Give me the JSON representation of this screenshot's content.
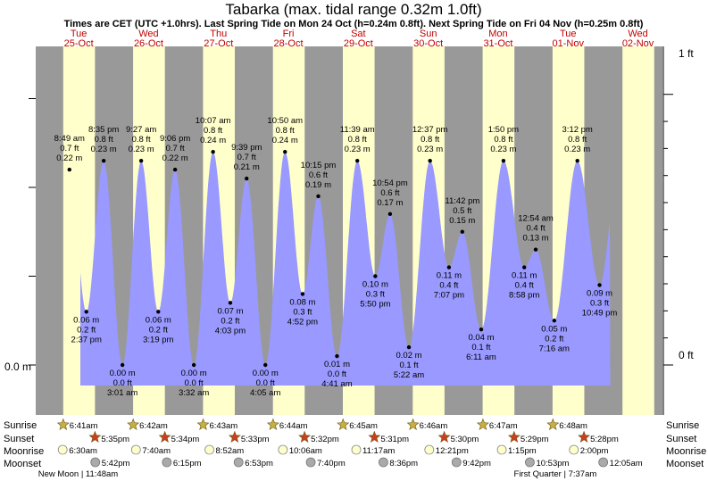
{
  "title": "Tabarka (max. tidal range 0.32m 1.0ft)",
  "subtitle": "Times are CET (UTC +1.0hrs). Last Spring Tide on Mon 24 Oct (h=0.24m 0.8ft). Next Spring Tide on Fri 04 Nov (h=0.25m 0.8ft)",
  "chart_data": {
    "type": "area",
    "time_unit": "hours after 00:00 Tue 25-Oct",
    "days": [
      {
        "dow": "Tue",
        "date": "25-Oct"
      },
      {
        "dow": "Wed",
        "date": "26-Oct"
      },
      {
        "dow": "Thu",
        "date": "27-Oct"
      },
      {
        "dow": "Fri",
        "date": "28-Oct"
      },
      {
        "dow": "Sat",
        "date": "29-Oct"
      },
      {
        "dow": "Sun",
        "date": "30-Oct"
      },
      {
        "dow": "Mon",
        "date": "31-Oct"
      },
      {
        "dow": "Tue",
        "date": "01-Nov"
      },
      {
        "dow": "Wed",
        "date": "02-Nov"
      }
    ],
    "y_left_label": "0.0 m",
    "y_right_top": "1 ft",
    "y_right_bottom": "0 ft",
    "ylim_m": [
      -0.02,
      0.305
    ],
    "tides": [
      {
        "t": -15.2,
        "h": 0.0,
        "time": "",
        "m": "",
        "ft": ""
      },
      {
        "t": 8.82,
        "h": 0.22,
        "time": "8:49 am",
        "m": "0.22 m",
        "ft": "0.7 ft"
      },
      {
        "t": 14.62,
        "h": 0.06,
        "time": "2:37 pm",
        "m": "0.06 m",
        "ft": "0.2 ft"
      },
      {
        "t": 20.58,
        "h": 0.23,
        "time": "8:35 pm",
        "m": "0.23 m",
        "ft": "0.8 ft"
      },
      {
        "t": 27.02,
        "h": 0.0,
        "time": "3:01 am",
        "m": "0.00 m",
        "ft": "0.0 ft"
      },
      {
        "t": 33.45,
        "h": 0.23,
        "time": "9:27 am",
        "m": "0.23 m",
        "ft": "0.8 ft"
      },
      {
        "t": 39.32,
        "h": 0.06,
        "time": "3:19 pm",
        "m": "0.06 m",
        "ft": "0.2 ft"
      },
      {
        "t": 45.1,
        "h": 0.22,
        "time": "9:06 pm",
        "m": "0.22 m",
        "ft": "0.7 ft"
      },
      {
        "t": 51.53,
        "h": 0.0,
        "time": "3:32 am",
        "m": "0.00 m",
        "ft": "0.0 ft"
      },
      {
        "t": 58.12,
        "h": 0.24,
        "time": "10:07 am",
        "m": "0.24 m",
        "ft": "0.8 ft"
      },
      {
        "t": 64.05,
        "h": 0.07,
        "time": "4:03 pm",
        "m": "0.07 m",
        "ft": "0.2 ft"
      },
      {
        "t": 69.65,
        "h": 0.21,
        "time": "9:39 pm",
        "m": "0.21 m",
        "ft": "0.7 ft"
      },
      {
        "t": 76.08,
        "h": 0.0,
        "time": "4:05 am",
        "m": "0.00 m",
        "ft": "0.0 ft"
      },
      {
        "t": 82.83,
        "h": 0.24,
        "time": "10:50 am",
        "m": "0.24 m",
        "ft": "0.8 ft"
      },
      {
        "t": 88.87,
        "h": 0.08,
        "time": "4:52 pm",
        "m": "0.08 m",
        "ft": "0.3 ft"
      },
      {
        "t": 94.25,
        "h": 0.19,
        "time": "10:15 pm",
        "m": "0.19 m",
        "ft": "0.6 ft"
      },
      {
        "t": 100.68,
        "h": 0.01,
        "time": "4:41 am",
        "m": "0.01 m",
        "ft": "0.0 ft"
      },
      {
        "t": 107.65,
        "h": 0.23,
        "time": "11:39 am",
        "m": "0.23 m",
        "ft": "0.8 ft"
      },
      {
        "t": 113.83,
        "h": 0.1,
        "time": "5:50 pm",
        "m": "0.10 m",
        "ft": "0.3 ft"
      },
      {
        "t": 118.9,
        "h": 0.17,
        "time": "10:54 pm",
        "m": "0.17 m",
        "ft": "0.6 ft"
      },
      {
        "t": 125.37,
        "h": 0.02,
        "time": "5:22 am",
        "m": "0.02 m",
        "ft": "0.1 ft"
      },
      {
        "t": 132.62,
        "h": 0.23,
        "time": "12:37 pm",
        "m": "0.23 m",
        "ft": "0.8 ft"
      },
      {
        "t": 139.12,
        "h": 0.11,
        "time": "7:07 pm",
        "m": "0.11 m",
        "ft": "0.4 ft"
      },
      {
        "t": 143.7,
        "h": 0.15,
        "time": "11:42 pm",
        "m": "0.15 m",
        "ft": "0.5 ft"
      },
      {
        "t": 150.18,
        "h": 0.04,
        "time": "6:11 am",
        "m": "0.04 m",
        "ft": "0.1 ft"
      },
      {
        "t": 157.83,
        "h": 0.23,
        "time": "1:50 pm",
        "m": "0.23 m",
        "ft": "0.8 ft"
      },
      {
        "t": 164.97,
        "h": 0.11,
        "time": "8:58 pm",
        "m": "0.11 m",
        "ft": "0.4 ft"
      },
      {
        "t": 168.9,
        "h": 0.13,
        "time": "12:54 am",
        "m": "0.13 m",
        "ft": "0.4 ft"
      },
      {
        "t": 175.27,
        "h": 0.05,
        "time": "7:16 am",
        "m": "0.05 m",
        "ft": "0.2 ft"
      },
      {
        "t": 183.2,
        "h": 0.23,
        "time": "3:12 pm",
        "m": "0.23 m",
        "ft": "0.8 ft"
      },
      {
        "t": 190.82,
        "h": 0.09,
        "time": "10:49 pm",
        "m": "0.09 m",
        "ft": "0.3 ft"
      },
      {
        "t": 196.7,
        "h": 0.2,
        "time": "",
        "m": "",
        "ft": ""
      }
    ],
    "curve_end_t": 194.5,
    "sunrise": [
      "6:41am",
      "6:42am",
      "6:43am",
      "6:44am",
      "6:45am",
      "6:46am",
      "6:47am",
      "6:48am"
    ],
    "sunset": [
      "5:35pm",
      "5:34pm",
      "5:33pm",
      "5:32pm",
      "5:31pm",
      "5:30pm",
      "5:29pm",
      "5:28pm"
    ],
    "moonrise": [
      "6:30am",
      "7:40am",
      "8:52am",
      "10:06am",
      "11:17am",
      "12:21pm",
      "1:15pm",
      "2:00pm"
    ],
    "moonset": [
      "5:42pm",
      "6:15pm",
      "6:53pm",
      "7:40pm",
      "8:36pm",
      "9:42pm",
      "10:53pm",
      "12:05am"
    ],
    "moon_phases": [
      {
        "label": "New Moon | 11:48am",
        "t": 11.8
      },
      {
        "label": "First Quarter | 7:37am",
        "t": 175.6
      }
    ]
  },
  "rows": {
    "sunrise": "Sunrise",
    "sunset": "Sunset",
    "moonrise": "Moonrise",
    "moonset": "Moonset"
  },
  "colors": {
    "day_band": "#ffffcc",
    "night_band": "#999999",
    "water": "#9999ff",
    "day_label": "#c00000",
    "sun_star": "#c8b040",
    "sunset_star": "#c84020",
    "moonrise_fill": "#ffffcc",
    "moonset_fill": "#aaaaaa"
  }
}
